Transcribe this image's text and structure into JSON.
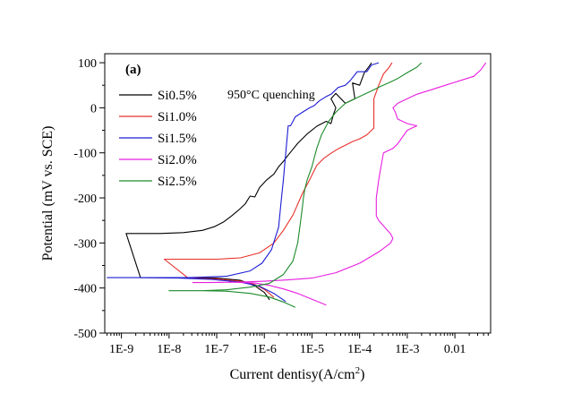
{
  "chart_data": {
    "type": "line",
    "panel_label": "(a)",
    "annotation": "950°C quenching",
    "xlabel_main": "Current dentisy(A/cm",
    "xlabel_sup": "2",
    "xlabel_close": ")",
    "xlabel": "Current dentisy(A/cm2)",
    "ylabel": "Potential (mV vs. SCE)",
    "xscale": "log",
    "xlim_log10": [
      -9.35,
      -1.25
    ],
    "ylim": [
      -500,
      120
    ],
    "x_ticks": [
      {
        "exp": -9,
        "label": "1E-9"
      },
      {
        "exp": -8,
        "label": "1E-8"
      },
      {
        "exp": -7,
        "label": "1E-7"
      },
      {
        "exp": -6,
        "label": "1E-6"
      },
      {
        "exp": -5,
        "label": "1E-5"
      },
      {
        "exp": -4,
        "label": "1E-4"
      },
      {
        "exp": -3,
        "label": "1E-3"
      },
      {
        "exp": -2,
        "label": "0.01"
      }
    ],
    "y_ticks": [
      {
        "value": 100,
        "label": "100"
      },
      {
        "value": 0,
        "label": "0"
      },
      {
        "value": -100,
        "label": "-100"
      },
      {
        "value": -200,
        "label": "-200"
      },
      {
        "value": -300,
        "label": "-300"
      },
      {
        "value": -400,
        "label": "-400"
      },
      {
        "value": -500,
        "label": "-500"
      }
    ],
    "legend_position": "top-left",
    "series": [
      {
        "name": "Si0.5%",
        "color": "#000000",
        "log_current": [
          -5.89,
          -6.0,
          -6.2,
          -6.5,
          -7.0,
          -7.6,
          -8.2,
          -8.6,
          -8.9,
          -8.6,
          -8.2,
          -7.7,
          -7.3,
          -7.05,
          -6.85,
          -6.7,
          -6.55,
          -6.4,
          -6.3,
          -6.2,
          -6.1,
          -5.95,
          -5.8,
          -5.7,
          -5.6,
          -5.5,
          -5.4,
          -5.3,
          -5.1,
          -4.9,
          -4.7,
          -4.6,
          -4.55,
          -4.5,
          -4.6,
          -4.5,
          -4.3,
          -4.1,
          -4.15,
          -4.0,
          -3.9,
          -3.8,
          -3.75
        ],
        "potential": [
          -426,
          -410,
          -395,
          -383,
          -378,
          -377,
          -377,
          -377,
          -279,
          -279,
          -279,
          -277,
          -272,
          -264,
          -253,
          -241,
          -228,
          -213,
          -196,
          -198,
          -177,
          -160,
          -147,
          -131,
          -119,
          -105,
          -92,
          -79,
          -58,
          -41,
          -30,
          -35,
          -15,
          0,
          20,
          32,
          10,
          20,
          55,
          50,
          78,
          92,
          100
        ]
      },
      {
        "name": "Si1.0%",
        "color": "#e8302a",
        "log_current": [
          -5.8,
          -6.0,
          -6.2,
          -6.5,
          -7.0,
          -7.6,
          -8.1,
          -7.6,
          -7.0,
          -6.5,
          -6.1,
          -5.8,
          -5.6,
          -5.4,
          -5.2,
          -5.05,
          -4.9,
          -4.75,
          -4.6,
          -4.45,
          -4.3,
          -4.15,
          -4.0,
          -3.85,
          -3.7,
          -3.7,
          -3.6,
          -3.5,
          -3.38,
          -3.32
        ],
        "potential": [
          -421,
          -403,
          -392,
          -385,
          -380,
          -378,
          -336,
          -336,
          -336,
          -333,
          -322,
          -300,
          -272,
          -238,
          -190,
          -160,
          -128,
          -112,
          -101,
          -91,
          -83,
          -75,
          -69,
          -60,
          -45,
          20,
          50,
          75,
          90,
          100
        ]
      },
      {
        "name": "Si1.5%",
        "color": "#1c1cd4",
        "log_current": [
          -5.55,
          -5.8,
          -6.1,
          -6.5,
          -7.1,
          -7.8,
          -8.6,
          -9.3,
          -8.6,
          -7.6,
          -6.8,
          -6.3,
          -6.05,
          -5.85,
          -5.7,
          -5.65,
          -5.6,
          -5.55,
          -5.5,
          -5.45,
          -5.4,
          -5.35,
          -5.2,
          -5.05,
          -4.95,
          -4.85,
          -4.7,
          -4.6,
          -4.45,
          -4.3,
          -4.2,
          -4.05,
          -3.85,
          -3.75,
          -3.6
        ],
        "potential": [
          -430,
          -412,
          -396,
          -387,
          -381,
          -378,
          -377,
          -377,
          -377,
          -377,
          -374,
          -362,
          -345,
          -315,
          -265,
          -210,
          -160,
          -100,
          -40,
          -40,
          -30,
          -20,
          -10,
          0,
          5,
          15,
          25,
          30,
          45,
          50,
          60,
          80,
          80,
          95,
          100
        ]
      },
      {
        "name": "Si2.0%",
        "color": "#e81ee0",
        "log_current": [
          -4.7,
          -5.0,
          -5.3,
          -5.6,
          -5.9,
          -6.2,
          -6.7,
          -7.2,
          -7.5,
          -7.2,
          -6.5,
          -6.0,
          -5.5,
          -5.0,
          -4.5,
          -4.0,
          -3.6,
          -3.35,
          -3.3,
          -3.35,
          -3.6,
          -3.65,
          -3.65,
          -3.6,
          -3.55,
          -3.5,
          -3.3,
          -3.2,
          -3.0,
          -2.8,
          -3.0,
          -3.2,
          -3.25,
          -3.3,
          -3.2,
          -3.0,
          -2.8,
          -2.5,
          -2.2,
          -1.9,
          -1.6,
          -1.45,
          -1.35
        ],
        "potential": [
          -438,
          -425,
          -412,
          -402,
          -394,
          -389,
          -387,
          -388,
          -388,
          -388,
          -387,
          -385,
          -382,
          -378,
          -366,
          -345,
          -320,
          -300,
          -290,
          -280,
          -250,
          -240,
          -200,
          -160,
          -130,
          -100,
          -90,
          -80,
          -50,
          -40,
          -35,
          -25,
          -10,
          0,
          10,
          20,
          30,
          40,
          50,
          60,
          70,
          85,
          100
        ]
      },
      {
        "name": "Si2.5%",
        "color": "#1d8a2a",
        "log_current": [
          -5.35,
          -5.6,
          -5.9,
          -6.3,
          -6.8,
          -7.3,
          -8.0,
          -7.3,
          -6.8,
          -6.3,
          -5.9,
          -5.6,
          -5.4,
          -5.3,
          -5.25,
          -5.2,
          -5.18,
          -5.15,
          -5.1,
          -5.0,
          -4.95,
          -4.9,
          -4.8,
          -4.65,
          -4.5,
          -4.3,
          -4.1,
          -3.9,
          -3.7,
          -3.55,
          -3.4,
          -3.2,
          -3.0,
          -2.8,
          -2.7
        ],
        "potential": [
          -443,
          -431,
          -420,
          -412,
          -407,
          -406,
          -406,
          -406,
          -404,
          -398,
          -390,
          -370,
          -340,
          -300,
          -260,
          -220,
          -200,
          -180,
          -160,
          -130,
          -110,
          -90,
          -60,
          -30,
          -10,
          10,
          20,
          30,
          40,
          48,
          55,
          65,
          78,
          90,
          100
        ]
      }
    ]
  }
}
